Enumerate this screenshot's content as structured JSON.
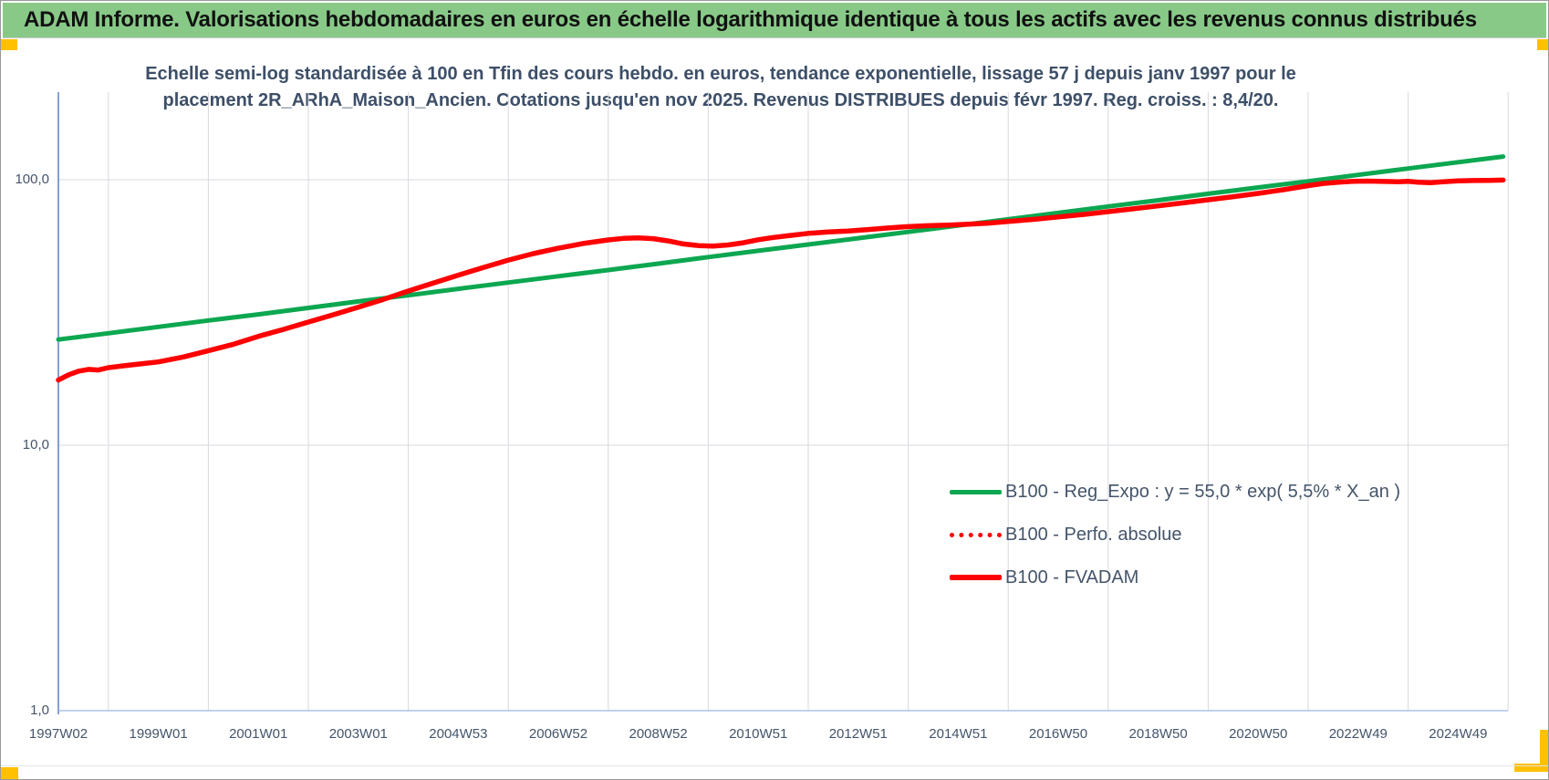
{
  "header": {
    "title": "ADAM Informe. Valorisations hebdomadaires en euros en échelle logarithmique identique à tous les actifs avec les revenus connus distribués",
    "bg_color": "#88C988",
    "accent_color": "#FFC000"
  },
  "chart_data": {
    "type": "line",
    "title_line1": "Echelle semi-log standardisée à 100 en Tfin des cours hebdo. en euros, tendance exponentielle, lissage 57 j depuis janv 1997 pour le",
    "title_line2": "placement 2R_ARhA_Maison_Ancien. Cotations jusqu'en nov 2025. Revenus DISTRIBUES depuis févr 1997. Reg. croiss. : 8,4/20.",
    "grid": true,
    "legend_position": "inside-bottom-right",
    "colors": {
      "green_line": "#0CA750",
      "red_line": "#FE0000",
      "text": "#44546A",
      "gridline": "#D9D9DF",
      "y_axis_line": "#5B82C2",
      "x_axis_line": "#9DB6DC"
    },
    "y_axis": {
      "scale": "log",
      "min": 1.0,
      "max": 215.0,
      "ticks": [
        {
          "label": "100,0",
          "value": 100
        },
        {
          "label": "10,0",
          "value": 10
        },
        {
          "label": "1,0",
          "value": 1
        }
      ]
    },
    "x_axis": {
      "start_year": 1997.0,
      "end_year": 2025.9,
      "labels": [
        "1997W02",
        "1999W01",
        "2001W01",
        "2003W01",
        "2004W53",
        "2006W52",
        "2008W52",
        "2010W51",
        "2012W51",
        "2014W51",
        "2016W50",
        "2018W50",
        "2020W50",
        "2022W49",
        "2024W49"
      ]
    },
    "legend": [
      {
        "label": "B100 - Reg_Expo : y = 55,0 * exp( 5,5% *  X_an )",
        "color": "#0CA750",
        "style": "solid"
      },
      {
        "label": "B100 - Perfo. absolue",
        "color": "#FE0000",
        "style": "dotted"
      },
      {
        "label": "B100 - FVADAM",
        "color": "#FE0000",
        "style": "solid"
      }
    ],
    "series": [
      {
        "name": "B100 - Reg_Expo : y = 55,0 * exp( 5,5% *  X_an )",
        "color": "#0CA750",
        "style": "solid",
        "width": 5,
        "points": [
          [
            1997,
            25.0
          ],
          [
            1998,
            26.4
          ],
          [
            1999,
            27.9
          ],
          [
            2000,
            29.5
          ],
          [
            2001,
            31.1
          ],
          [
            2002,
            32.9
          ],
          [
            2003,
            34.8
          ],
          [
            2004,
            36.7
          ],
          [
            2005,
            38.8
          ],
          [
            2006,
            41.0
          ],
          [
            2007,
            43.3
          ],
          [
            2008,
            45.7
          ],
          [
            2009,
            48.3
          ],
          [
            2010,
            51.1
          ],
          [
            2011,
            54.0
          ],
          [
            2012,
            57.0
          ],
          [
            2013,
            60.2
          ],
          [
            2014,
            63.6
          ],
          [
            2015,
            67.2
          ],
          [
            2016,
            71.0
          ],
          [
            2017,
            75.0
          ],
          [
            2018,
            79.3
          ],
          [
            2019,
            83.7
          ],
          [
            2020,
            88.5
          ],
          [
            2021,
            93.5
          ],
          [
            2022,
            98.7
          ],
          [
            2023,
            104.3
          ],
          [
            2024,
            110.2
          ],
          [
            2025,
            116.4
          ],
          [
            2025.9,
            122.3
          ]
        ]
      },
      {
        "name": "B100 - Perfo. absolue",
        "color": "#FE0000",
        "style": "dotted",
        "width": 4,
        "points": [],
        "points_ref": "B100 - FVADAM",
        "note": "coincides exactly with B100 - FVADAM (hidden beneath solid red line)"
      },
      {
        "name": "B100 - FVADAM",
        "color": "#FE0000",
        "style": "solid",
        "width": 5.5,
        "points": [
          [
            1997.0,
            17.6
          ],
          [
            1997.2,
            18.4
          ],
          [
            1997.4,
            19.0
          ],
          [
            1997.6,
            19.3
          ],
          [
            1997.8,
            19.2
          ],
          [
            1998.0,
            19.6
          ],
          [
            1998.3,
            19.9
          ],
          [
            1998.6,
            20.2
          ],
          [
            1999.0,
            20.6
          ],
          [
            1999.5,
            21.5
          ],
          [
            2000.0,
            22.7
          ],
          [
            2000.5,
            24.0
          ],
          [
            2001.0,
            25.7
          ],
          [
            2001.5,
            27.3
          ],
          [
            2002.0,
            29.1
          ],
          [
            2002.5,
            31.0
          ],
          [
            2003.0,
            33.1
          ],
          [
            2003.5,
            35.4
          ],
          [
            2004.0,
            38.1
          ],
          [
            2004.5,
            40.8
          ],
          [
            2005.0,
            43.7
          ],
          [
            2005.5,
            46.7
          ],
          [
            2006.0,
            49.8
          ],
          [
            2006.5,
            52.7
          ],
          [
            2007.0,
            55.2
          ],
          [
            2007.5,
            57.5
          ],
          [
            2008.0,
            59.3
          ],
          [
            2008.3,
            60.1
          ],
          [
            2008.6,
            60.4
          ],
          [
            2008.9,
            60.0
          ],
          [
            2009.2,
            58.8
          ],
          [
            2009.5,
            57.3
          ],
          [
            2009.8,
            56.5
          ],
          [
            2010.1,
            56.2
          ],
          [
            2010.4,
            56.8
          ],
          [
            2010.7,
            57.9
          ],
          [
            2011.0,
            59.4
          ],
          [
            2011.3,
            60.6
          ],
          [
            2011.6,
            61.5
          ],
          [
            2012.0,
            62.8
          ],
          [
            2012.4,
            63.6
          ],
          [
            2012.8,
            64.1
          ],
          [
            2013.2,
            64.9
          ],
          [
            2013.6,
            65.8
          ],
          [
            2014.0,
            66.6
          ],
          [
            2014.4,
            67.1
          ],
          [
            2014.8,
            67.5
          ],
          [
            2015.2,
            68.0
          ],
          [
            2015.6,
            68.6
          ],
          [
            2016.0,
            69.6
          ],
          [
            2016.5,
            70.9
          ],
          [
            2017.0,
            72.4
          ],
          [
            2017.5,
            74.0
          ],
          [
            2018.0,
            75.8
          ],
          [
            2018.5,
            77.7
          ],
          [
            2019.0,
            79.7
          ],
          [
            2019.5,
            81.8
          ],
          [
            2020.0,
            84.0
          ],
          [
            2020.5,
            86.3
          ],
          [
            2021.0,
            88.8
          ],
          [
            2021.5,
            91.7
          ],
          [
            2022.0,
            95.0
          ],
          [
            2022.3,
            96.8
          ],
          [
            2022.6,
            97.9
          ],
          [
            2022.9,
            98.6
          ],
          [
            2023.2,
            98.8
          ],
          [
            2023.5,
            98.5
          ],
          [
            2023.8,
            98.3
          ],
          [
            2024.0,
            98.6
          ],
          [
            2024.2,
            97.8
          ],
          [
            2024.45,
            97.5
          ],
          [
            2024.7,
            98.2
          ],
          [
            2025.0,
            99.0
          ],
          [
            2025.3,
            99.3
          ],
          [
            2025.6,
            99.4
          ],
          [
            2025.9,
            99.7
          ]
        ]
      }
    ]
  }
}
